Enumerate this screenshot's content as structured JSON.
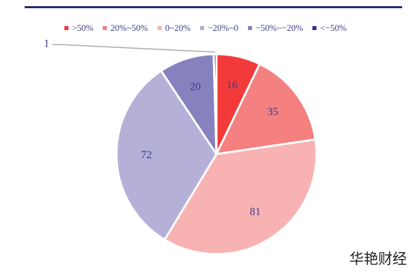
{
  "chart_data": {
    "type": "pie",
    "title": "",
    "legend_placement": "top",
    "slices": [
      {
        "label": ">50%",
        "value": 16,
        "color": "#f23a3a"
      },
      {
        "label": "20%~50%",
        "value": 35,
        "color": "#f58080"
      },
      {
        "label": "0~20%",
        "value": 81,
        "color": "#f8b2b2"
      },
      {
        "label": "−20%~0",
        "value": 72,
        "color": "#b4b0d8"
      },
      {
        "label": "−50%~−20%",
        "value": 20,
        "color": "#8781c0"
      },
      {
        "label": "<−50%",
        "value": 1,
        "color": "#3b3595"
      }
    ]
  },
  "watermark": "华艳财经",
  "colors": {
    "top_rule": "#26276b",
    "label_text": "#3b3b8a"
  }
}
